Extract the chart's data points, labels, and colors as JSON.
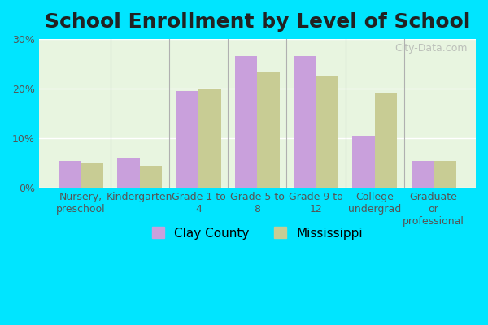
{
  "title": "School Enrollment by Level of School",
  "categories": [
    "Nursery,\npreschool",
    "Kindergarten",
    "Grade 1 to\n4",
    "Grade 5 to\n8",
    "Grade 9 to\n12",
    "College\nundergrad",
    "Graduate\nor\nprofessional"
  ],
  "clay_county": [
    5.5,
    6.0,
    19.5,
    26.5,
    26.5,
    10.5,
    5.5
  ],
  "mississippi": [
    5.0,
    4.5,
    20.0,
    23.5,
    22.5,
    19.0,
    5.5
  ],
  "clay_color": "#c9a0dc",
  "miss_color": "#c8cc94",
  "background_outer": "#00e5ff",
  "background_inner": "#e8f5e0",
  "ylim": [
    0,
    30
  ],
  "yticks": [
    0,
    10,
    20,
    30
  ],
  "ytick_labels": [
    "0%",
    "10%",
    "20%",
    "30%"
  ],
  "legend_clay": "Clay County",
  "legend_miss": "Mississippi",
  "title_fontsize": 18,
  "tick_fontsize": 9,
  "legend_fontsize": 11,
  "bar_width": 0.38,
  "watermark": "City-Data.com"
}
